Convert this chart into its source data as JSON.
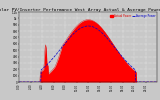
{
  "title": "Solar PV/Inverter Performance West Array Actual & Average Power Output",
  "title_fontsize": 3.2,
  "bg_color": "#c8c8c8",
  "plot_bg_color": "#c8c8c8",
  "grid_color": "#ffffff",
  "actual_color": "#dd0000",
  "average_color": "#0000cc",
  "actual_fill_color": "#ff0000",
  "ylim": [
    0,
    1100
  ],
  "ytick_labels": [
    "0",
    "100",
    "200",
    "300",
    "400",
    "500",
    "600",
    "700",
    "800",
    "900",
    "1k",
    "1.1k"
  ],
  "ytick_values": [
    0,
    100,
    200,
    300,
    400,
    500,
    600,
    700,
    800,
    900,
    1000,
    1100
  ],
  "xlim": [
    0,
    287
  ],
  "n_points": 288,
  "legend_actual": "Actual Power",
  "legend_average": "Average Power"
}
